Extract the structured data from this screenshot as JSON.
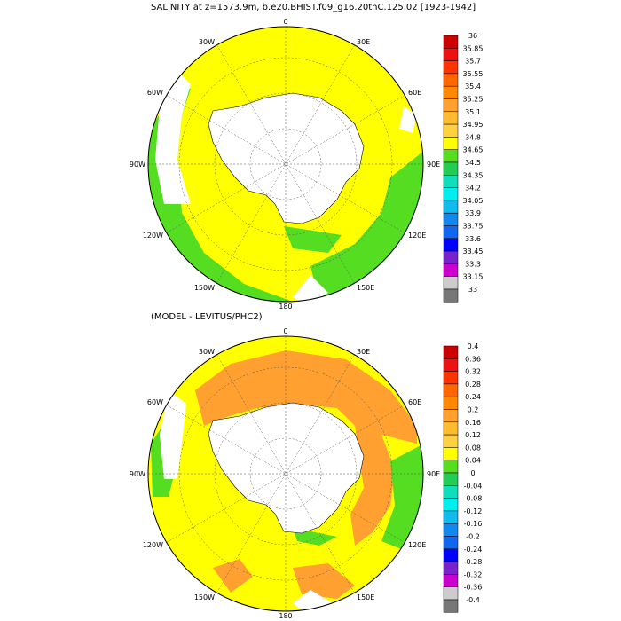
{
  "panels": [
    {
      "title": "SALINITY at z=1573.9m, b.e20.BHIST.f09_g16.20thC.125.02 [1923-1942]",
      "longitude_labels": [
        "0",
        "30E",
        "60E",
        "90E",
        "120E",
        "150E",
        "180",
        "150W",
        "120W",
        "90W",
        "60W",
        "30W"
      ],
      "colorbar_labels": [
        "36",
        "35.85",
        "35.7",
        "35.55",
        "35.4",
        "35.25",
        "35.1",
        "34.95",
        "34.8",
        "34.65",
        "34.5",
        "34.35",
        "34.2",
        "34.05",
        "33.9",
        "33.75",
        "33.6",
        "33.45",
        "33.3",
        "33.15",
        "33"
      ],
      "colorbar_colors": [
        "#cc0000",
        "#ee1111",
        "#ff3300",
        "#ff6600",
        "#ff8800",
        "#ffa030",
        "#ffbb30",
        "#ffd040",
        "#ffff00",
        "#55dd22",
        "#22cc55",
        "#11ddbb",
        "#00eeee",
        "#11bbee",
        "#1188ee",
        "#1166ee",
        "#0000ff",
        "#7722cc",
        "#cc00cc",
        "#cccccc",
        "#777777"
      ]
    },
    {
      "title": "(MODEL - LEVITUS/PHC2)",
      "longitude_labels": [
        "0",
        "30E",
        "60E",
        "90E",
        "120E",
        "150E",
        "180",
        "150W",
        "120W",
        "90W",
        "60W",
        "30W"
      ],
      "colorbar_labels": [
        "0.4",
        "0.36",
        "0.32",
        "0.28",
        "0.24",
        "0.2",
        "0.16",
        "0.12",
        "0.08",
        "0.04",
        "0",
        "-0.04",
        "-0.08",
        "-0.12",
        "-0.16",
        "-0.2",
        "-0.24",
        "-0.28",
        "-0.32",
        "-0.36",
        "-0.4"
      ],
      "colorbar_colors": [
        "#cc0000",
        "#ee1111",
        "#ff3300",
        "#ff6600",
        "#ff8800",
        "#ffa030",
        "#ffbb30",
        "#ffd040",
        "#ffff00",
        "#55dd22",
        "#22cc55",
        "#11ddbb",
        "#00eeee",
        "#11bbee",
        "#1188ee",
        "#1166ee",
        "#0000ff",
        "#7722cc",
        "#cc00cc",
        "#cccccc",
        "#777777"
      ]
    }
  ],
  "colors": {
    "panel1_ocean": "#ffff00",
    "panel1_rim": "#55dd22",
    "panel2_ocean": "#ffd040",
    "panel2_warm": "#ffa030",
    "panel2_rim": "#55dd22",
    "land": "#ffffff"
  }
}
